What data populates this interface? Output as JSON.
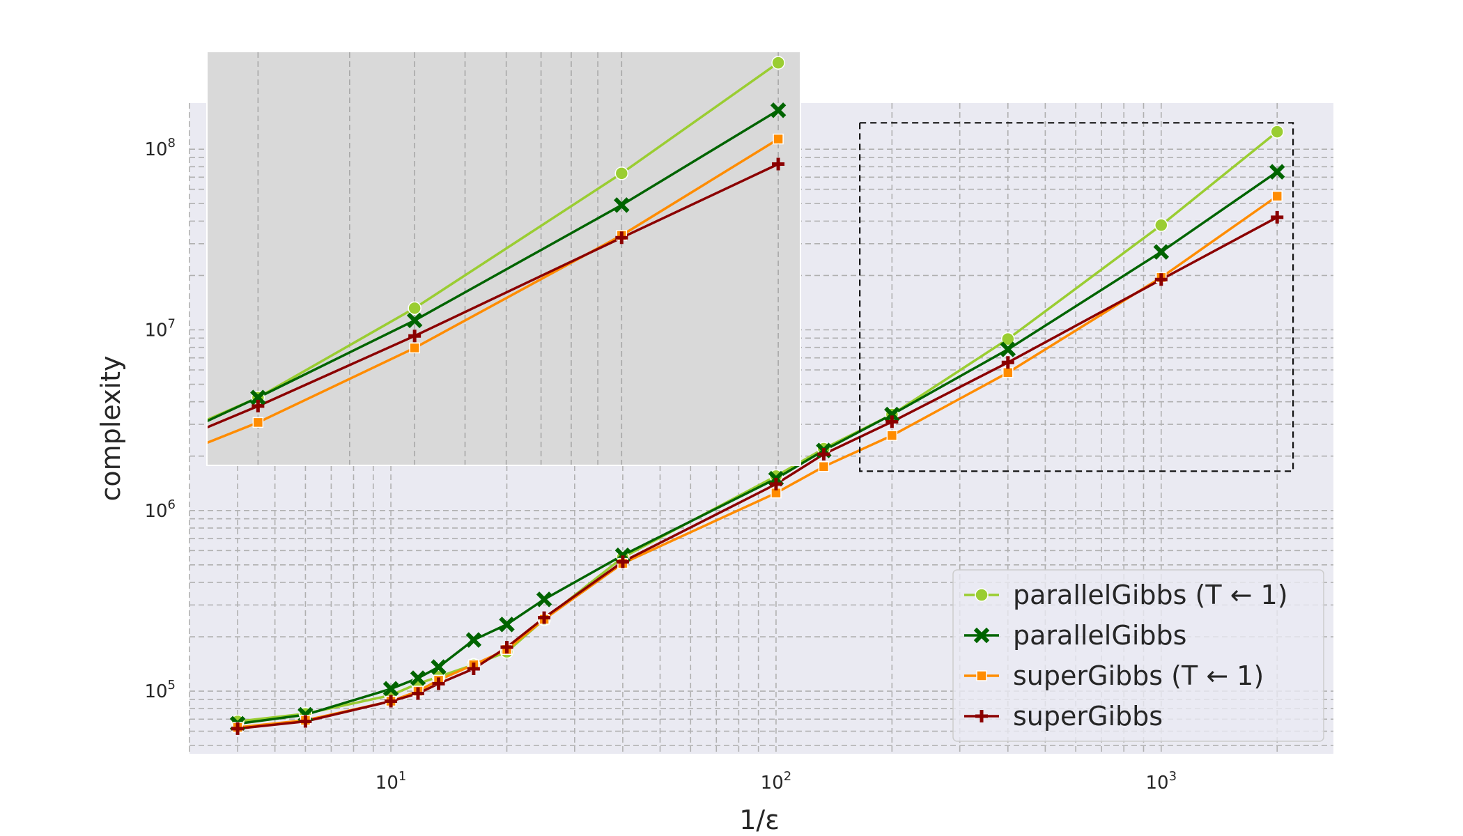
{
  "chart_data": {
    "type": "line",
    "xlabel": "1/ε",
    "ylabel": "complexity",
    "xscale": "log",
    "yscale": "log",
    "xlim": [
      3,
      2800
    ],
    "ylim": [
      45000,
      180000000
    ],
    "x_ticks": [
      {
        "base": "10",
        "exp": "1"
      },
      {
        "base": "10",
        "exp": "2"
      },
      {
        "base": "10",
        "exp": "3"
      }
    ],
    "y_ticks": [
      {
        "base": "10",
        "exp": "5"
      },
      {
        "base": "10",
        "exp": "6"
      },
      {
        "base": "10",
        "exp": "7"
      },
      {
        "base": "10",
        "exp": "8"
      }
    ],
    "grid": true,
    "legend_position": "lower-right",
    "series": [
      {
        "name": "parallelGibbs (T ← 1)",
        "color": "#9acd32",
        "marker": "circle",
        "x": [
          4,
          6,
          10,
          11.76,
          13.3,
          16.4,
          20,
          25,
          40,
          100,
          133,
          200,
          400,
          1000,
          2000
        ],
        "y": [
          68000,
          75000,
          95000,
          110000,
          120000,
          140000,
          165000,
          250000,
          550000,
          1550000,
          2200000,
          3400000,
          8900000,
          38000000,
          125000000
        ]
      },
      {
        "name": "parallelGibbs",
        "color": "#006400",
        "marker": "x",
        "x": [
          4,
          6,
          10,
          11.76,
          13.3,
          16.4,
          20,
          25,
          40,
          100,
          133,
          200,
          400,
          1000,
          2000
        ],
        "y": [
          66000,
          74000,
          103000,
          118000,
          136000,
          192000,
          234000,
          322000,
          565000,
          1500000,
          2150000,
          3400000,
          7800000,
          27000000,
          75000000
        ]
      },
      {
        "name": "superGibbs (T ← 1)",
        "color": "#ff8c00",
        "marker": "square",
        "x": [
          4,
          6,
          10,
          11.76,
          13.3,
          16.4,
          20,
          25,
          40,
          100,
          133,
          200,
          400,
          1000,
          2000
        ],
        "y": [
          63000,
          69000,
          88000,
          100000,
          115000,
          140000,
          170000,
          250000,
          510000,
          1250000,
          1750000,
          2600000,
          5800000,
          19500000,
          55000000
        ]
      },
      {
        "name": "superGibbs",
        "color": "#8b0000",
        "marker": "plus",
        "x": [
          4,
          6,
          10,
          11.76,
          13.3,
          16.4,
          20,
          25,
          40,
          100,
          133,
          200,
          400,
          1000,
          2000
        ],
        "y": [
          62000,
          68000,
          88000,
          97000,
          110000,
          133000,
          175000,
          255000,
          520000,
          1400000,
          2050000,
          3100000,
          6600000,
          19000000,
          42000000
        ]
      }
    ],
    "inset": {
      "description": "zoom of the dashed rectangle region",
      "xlim": [
        160,
        2200
      ],
      "ylim": [
        1650000,
        140000000
      ],
      "xscale": "log",
      "yscale": "log"
    },
    "zoom_box": {
      "xlim": [
        165,
        2200
      ],
      "ylim": [
        1650000,
        140000000
      ]
    }
  },
  "colors": {
    "plot_background": "#eaeaf2",
    "inset_background": "#d9d9d9",
    "grid": "#b0b0b0"
  }
}
